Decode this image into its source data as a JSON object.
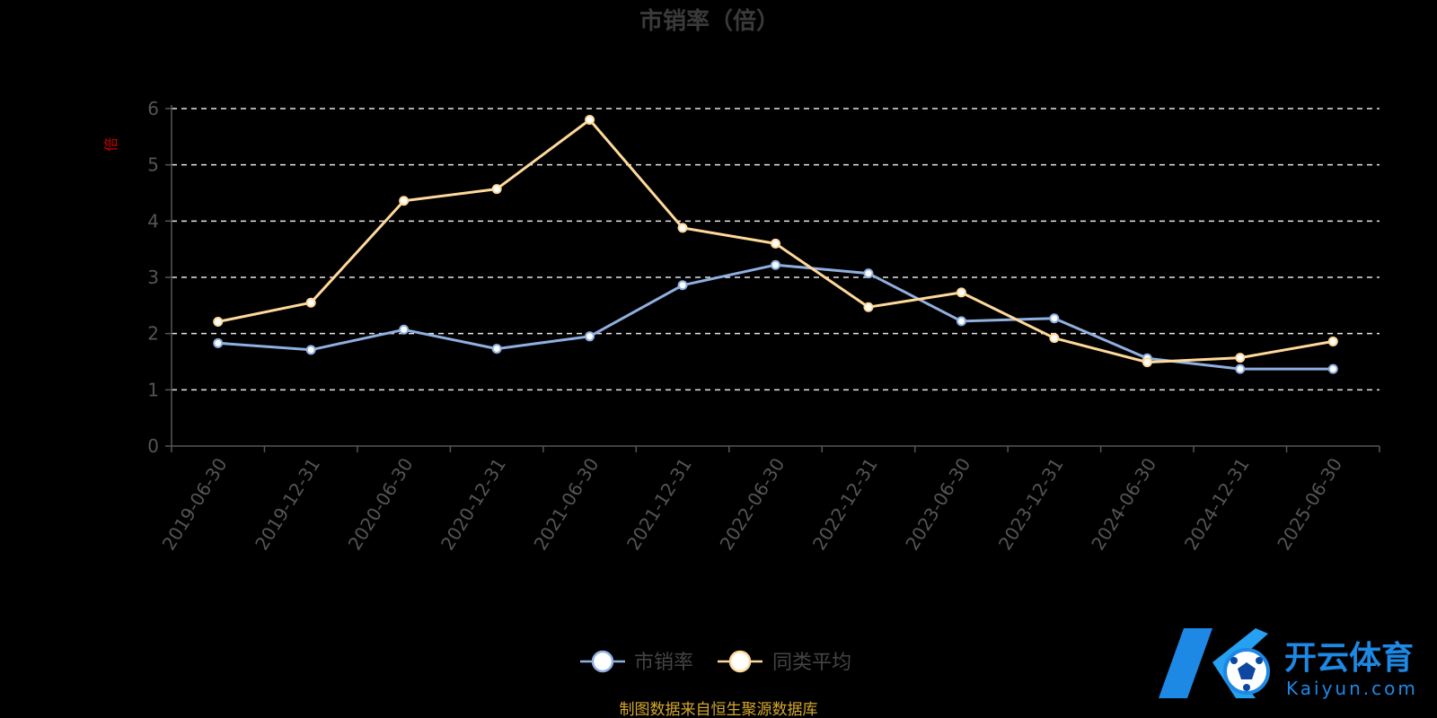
{
  "chart_data": {
    "type": "line",
    "title": "市销率（倍）",
    "ylabel": "倍",
    "categories": [
      "2019-06-30",
      "2019-12-31",
      "2020-06-30",
      "2020-12-31",
      "2021-06-30",
      "2021-12-31",
      "2022-06-30",
      "2022-12-31",
      "2023-06-30",
      "2023-12-31",
      "2024-06-30",
      "2024-12-31",
      "2025-06-30"
    ],
    "yticks": [
      "0",
      "1",
      "2",
      "3",
      "4",
      "5",
      "6"
    ],
    "ylim": [
      0,
      6
    ],
    "grid": true,
    "legend_position": "bottom",
    "series": [
      {
        "name": "市销率",
        "color": "#8fb0e0",
        "values": [
          1.83,
          1.71,
          2.07,
          1.73,
          1.95,
          2.86,
          3.22,
          3.07,
          2.22,
          2.27,
          1.56,
          1.37,
          1.37
        ]
      },
      {
        "name": "同类平均",
        "color": "#ffd99a",
        "values": [
          2.21,
          2.55,
          4.36,
          4.57,
          5.8,
          3.88,
          3.6,
          2.47,
          2.73,
          1.92,
          1.49,
          1.57,
          1.86
        ]
      }
    ],
    "source": "制图数据来自恒生聚源数据库"
  },
  "brand": {
    "name_cn": "开云体育",
    "name_en": "Kaiyun.com",
    "primary_color": "#1e88e5"
  }
}
